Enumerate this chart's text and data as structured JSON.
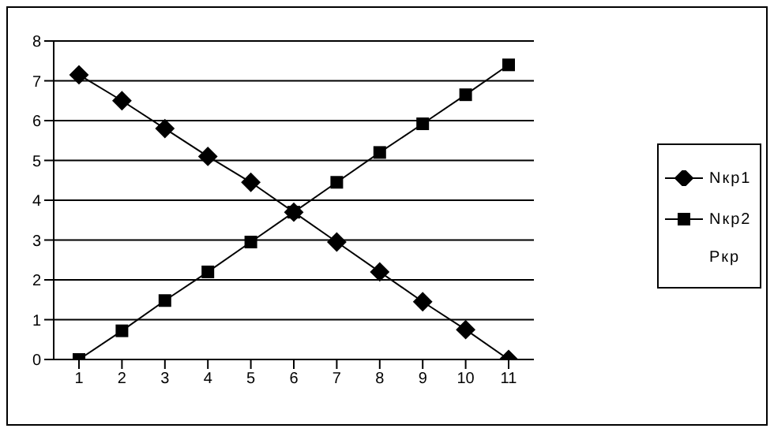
{
  "chart_data": {
    "type": "line",
    "categories": [
      "1",
      "2",
      "3",
      "4",
      "5",
      "6",
      "7",
      "8",
      "9",
      "10",
      "11"
    ],
    "series": [
      {
        "name": "Nкр1",
        "color": "#000000",
        "marker": "diamond",
        "values": [
          7.15,
          6.5,
          5.8,
          5.1,
          4.45,
          3.7,
          2.95,
          2.2,
          1.45,
          0.75,
          0
        ]
      },
      {
        "name": "Nкр2",
        "color": "#000000",
        "marker": "square",
        "values": [
          0,
          0.72,
          1.48,
          2.2,
          2.95,
          3.7,
          4.45,
          5.2,
          5.92,
          6.65,
          7.4
        ]
      }
    ],
    "annotations": [
      "Ркр"
    ],
    "ylim": [
      0,
      8
    ],
    "yticks": [
      0,
      1,
      2,
      3,
      4,
      5,
      6,
      7,
      8
    ],
    "grid": "y",
    "legend": "right"
  }
}
